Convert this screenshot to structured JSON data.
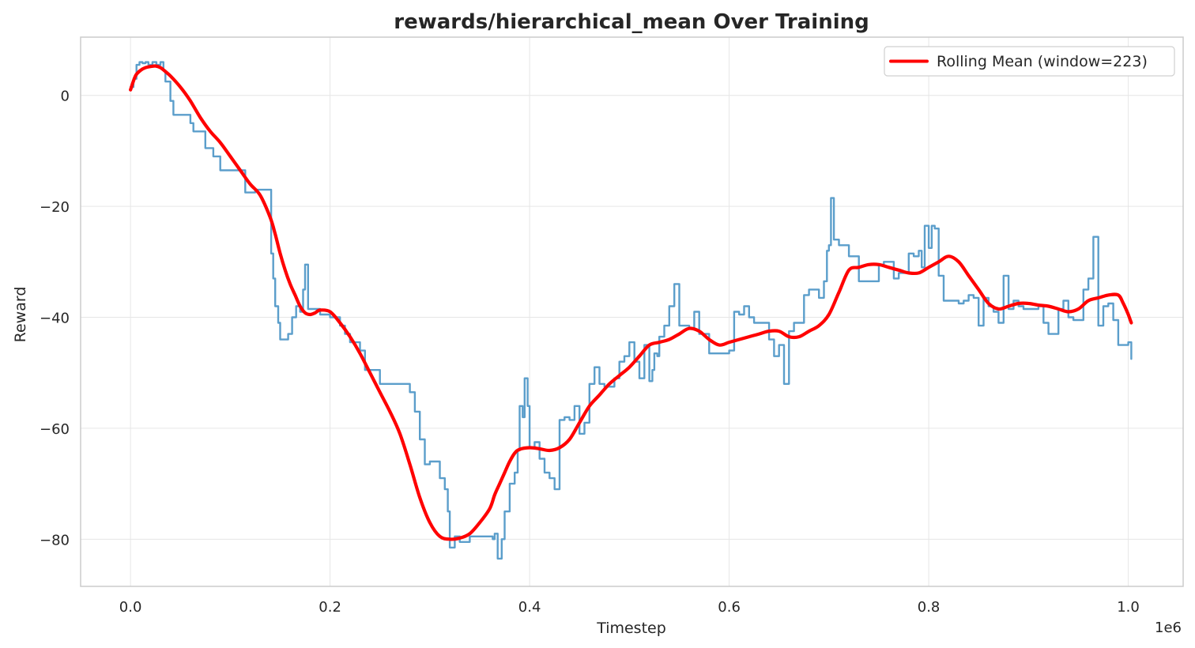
{
  "chart_data": {
    "type": "line",
    "title": "rewards/hierarchical_mean Over Training",
    "xlabel": "Timestep",
    "ylabel": "Reward",
    "x_multiplier_label": "1e6",
    "xlim": [
      -0.05,
      1.055
    ],
    "ylim": [
      -88.5,
      10.5
    ],
    "x_ticks": [
      0.0,
      0.2,
      0.4,
      0.6,
      0.8,
      1.0
    ],
    "x_tick_labels": [
      "0.0",
      "0.2",
      "0.4",
      "0.6",
      "0.8",
      "1.0"
    ],
    "y_ticks": [
      0,
      -20,
      -40,
      -60,
      -80
    ],
    "y_tick_labels": [
      "0",
      "−20",
      "−40",
      "−60",
      "−80"
    ],
    "grid": true,
    "legend_position": "top-right",
    "colors": {
      "raw": "#5b9ecb",
      "rolling": "#ff0000",
      "grid": "#e6e6e6",
      "spine": "#cccccc"
    },
    "series": [
      {
        "key": "raw",
        "style": "step",
        "x": [
          0.0,
          0.003,
          0.006,
          0.009,
          0.012,
          0.015,
          0.018,
          0.022,
          0.026,
          0.03,
          0.033,
          0.035,
          0.04,
          0.043,
          0.048,
          0.052,
          0.055,
          0.06,
          0.063,
          0.065,
          0.07,
          0.075,
          0.08,
          0.083,
          0.085,
          0.09,
          0.095,
          0.1,
          0.11,
          0.115,
          0.12,
          0.125,
          0.13,
          0.138,
          0.141,
          0.143,
          0.145,
          0.148,
          0.15,
          0.153,
          0.158,
          0.162,
          0.166,
          0.17,
          0.173,
          0.175,
          0.178,
          0.18,
          0.185,
          0.19,
          0.2,
          0.21,
          0.215,
          0.22,
          0.225,
          0.23,
          0.235,
          0.24,
          0.25,
          0.26,
          0.27,
          0.28,
          0.285,
          0.29,
          0.295,
          0.3,
          0.305,
          0.31,
          0.315,
          0.318,
          0.32,
          0.325,
          0.33,
          0.34,
          0.35,
          0.355,
          0.36,
          0.363,
          0.365,
          0.368,
          0.372,
          0.375,
          0.38,
          0.385,
          0.388,
          0.39,
          0.393,
          0.395,
          0.398,
          0.4,
          0.405,
          0.41,
          0.415,
          0.42,
          0.425,
          0.43,
          0.435,
          0.44,
          0.445,
          0.45,
          0.455,
          0.46,
          0.465,
          0.47,
          0.475,
          0.48,
          0.485,
          0.49,
          0.495,
          0.5,
          0.505,
          0.51,
          0.515,
          0.52,
          0.523,
          0.525,
          0.528,
          0.53,
          0.535,
          0.54,
          0.545,
          0.55,
          0.555,
          0.56,
          0.565,
          0.57,
          0.58,
          0.59,
          0.6,
          0.605,
          0.61,
          0.615,
          0.62,
          0.625,
          0.63,
          0.635,
          0.64,
          0.645,
          0.65,
          0.655,
          0.66,
          0.665,
          0.67,
          0.675,
          0.68,
          0.685,
          0.69,
          0.695,
          0.698,
          0.7,
          0.702,
          0.705,
          0.71,
          0.715,
          0.72,
          0.73,
          0.74,
          0.75,
          0.755,
          0.76,
          0.765,
          0.77,
          0.775,
          0.78,
          0.785,
          0.79,
          0.793,
          0.796,
          0.8,
          0.803,
          0.806,
          0.81,
          0.815,
          0.82,
          0.825,
          0.83,
          0.835,
          0.84,
          0.845,
          0.85,
          0.855,
          0.86,
          0.865,
          0.87,
          0.875,
          0.88,
          0.885,
          0.89,
          0.895,
          0.9,
          0.905,
          0.91,
          0.915,
          0.92,
          0.925,
          0.93,
          0.935,
          0.94,
          0.945,
          0.95,
          0.955,
          0.96,
          0.965,
          0.97,
          0.975,
          0.98,
          0.985,
          0.99,
          0.995,
          1.0,
          1.003
        ],
        "y": [
          1.5,
          3.0,
          5.5,
          6.0,
          5.8,
          6.0,
          5.5,
          6.0,
          5.5,
          6.0,
          4.5,
          2.5,
          -1.0,
          -3.5,
          -3.5,
          -3.5,
          -3.5,
          -5.0,
          -6.5,
          -6.5,
          -6.5,
          -9.5,
          -9.5,
          -11.0,
          -11.0,
          -13.5,
          -13.5,
          -13.5,
          -13.5,
          -17.5,
          -17.5,
          -17.0,
          -17.0,
          -17.0,
          -28.5,
          -33.0,
          -38.0,
          -41.0,
          -44.0,
          -44.0,
          -43.0,
          -40.0,
          -38.0,
          -39.0,
          -35.0,
          -30.5,
          -38.5,
          -38.5,
          -38.5,
          -39.5,
          -40.0,
          -41.5,
          -43.0,
          -44.5,
          -44.5,
          -46.0,
          -49.5,
          -49.5,
          -52.0,
          -52.0,
          -52.0,
          -53.5,
          -57.0,
          -62.0,
          -66.5,
          -66.0,
          -66.0,
          -69.0,
          -71.0,
          -75.0,
          -81.5,
          -79.5,
          -80.5,
          -79.5,
          -79.5,
          -79.5,
          -79.5,
          -80.0,
          -79.0,
          -83.5,
          -80.0,
          -75.0,
          -70.0,
          -68.0,
          -64.0,
          -56.0,
          -58.0,
          -51.0,
          -56.0,
          -63.5,
          -62.5,
          -65.5,
          -68.0,
          -69.0,
          -71.0,
          -58.5,
          -58.0,
          -58.5,
          -56.0,
          -61.0,
          -59.0,
          -52.0,
          -49.0,
          -52.0,
          -52.5,
          -52.5,
          -51.0,
          -48.0,
          -47.0,
          -44.5,
          -48.0,
          -51.0,
          -45.0,
          -51.5,
          -49.5,
          -46.5,
          -47.0,
          -43.5,
          -41.5,
          -38.0,
          -34.0,
          -41.5,
          -41.5,
          -42.0,
          -39.0,
          -43.0,
          -46.5,
          -46.5,
          -46.0,
          -39.0,
          -39.5,
          -38.0,
          -40.0,
          -41.0,
          -41.0,
          -41.0,
          -44.0,
          -47.0,
          -45.0,
          -52.0,
          -42.5,
          -41.0,
          -41.0,
          -36.0,
          -35.0,
          -35.0,
          -36.5,
          -33.5,
          -28.0,
          -27.0,
          -18.5,
          -26.0,
          -27.0,
          -27.0,
          -29.0,
          -33.5,
          -33.5,
          -30.5,
          -30.0,
          -30.0,
          -33.0,
          -32.0,
          -32.0,
          -28.5,
          -29.0,
          -28.0,
          -31.0,
          -23.5,
          -27.5,
          -23.5,
          -24.0,
          -32.5,
          -37.0,
          -37.0,
          -37.0,
          -37.5,
          -37.0,
          -36.0,
          -36.5,
          -41.5,
          -36.5,
          -38.0,
          -39.0,
          -41.0,
          -32.5,
          -38.5,
          -37.0,
          -38.0,
          -38.5,
          -38.5,
          -38.5,
          -38.0,
          -41.0,
          -43.0,
          -43.0,
          -38.5,
          -37.0,
          -40.0,
          -40.5,
          -40.5,
          -35.0,
          -33.0,
          -25.5,
          -41.5,
          -38.0,
          -37.5,
          -40.5,
          -45.0,
          -45.0,
          -44.5,
          -47.5
        ]
      },
      {
        "key": "rolling",
        "name": "Rolling Mean (window=223)",
        "style": "smooth",
        "x": [
          0.0,
          0.005,
          0.01,
          0.015,
          0.02,
          0.025,
          0.03,
          0.035,
          0.04,
          0.05,
          0.06,
          0.07,
          0.08,
          0.09,
          0.1,
          0.11,
          0.12,
          0.13,
          0.14,
          0.145,
          0.15,
          0.155,
          0.16,
          0.165,
          0.17,
          0.175,
          0.18,
          0.185,
          0.19,
          0.2,
          0.21,
          0.22,
          0.23,
          0.24,
          0.25,
          0.26,
          0.27,
          0.28,
          0.29,
          0.3,
          0.31,
          0.32,
          0.33,
          0.34,
          0.35,
          0.36,
          0.365,
          0.37,
          0.375,
          0.38,
          0.385,
          0.39,
          0.4,
          0.41,
          0.42,
          0.43,
          0.44,
          0.45,
          0.46,
          0.47,
          0.48,
          0.49,
          0.5,
          0.51,
          0.52,
          0.53,
          0.54,
          0.55,
          0.56,
          0.57,
          0.58,
          0.59,
          0.6,
          0.61,
          0.62,
          0.63,
          0.64,
          0.65,
          0.66,
          0.67,
          0.68,
          0.69,
          0.7,
          0.71,
          0.72,
          0.73,
          0.74,
          0.75,
          0.76,
          0.77,
          0.78,
          0.79,
          0.8,
          0.81,
          0.82,
          0.83,
          0.84,
          0.85,
          0.86,
          0.87,
          0.88,
          0.89,
          0.9,
          0.91,
          0.92,
          0.93,
          0.94,
          0.95,
          0.96,
          0.97,
          0.98,
          0.99,
          0.995,
          1.0,
          1.003
        ],
        "y": [
          1.0,
          3.5,
          4.5,
          5.0,
          5.2,
          5.3,
          5.0,
          4.3,
          3.5,
          1.5,
          -1.0,
          -4.0,
          -6.5,
          -8.5,
          -11.0,
          -13.5,
          -16.0,
          -18.0,
          -22.0,
          -25.0,
          -28.5,
          -31.5,
          -34.0,
          -36.0,
          -38.0,
          -39.2,
          -39.5,
          -39.2,
          -38.7,
          -39.0,
          -41.0,
          -43.5,
          -46.5,
          -50.0,
          -53.5,
          -57.0,
          -61.0,
          -66.5,
          -72.5,
          -77.0,
          -79.5,
          -80.0,
          -79.8,
          -79.0,
          -77.0,
          -74.5,
          -72.0,
          -70.0,
          -68.0,
          -66.0,
          -64.5,
          -63.8,
          -63.5,
          -63.7,
          -64.0,
          -63.5,
          -62.0,
          -59.0,
          -56.0,
          -54.0,
          -52.0,
          -50.5,
          -49.0,
          -47.0,
          -45.0,
          -44.5,
          -44.0,
          -43.0,
          -42.0,
          -42.5,
          -44.0,
          -45.0,
          -44.5,
          -44.0,
          -43.5,
          -43.0,
          -42.5,
          -42.5,
          -43.5,
          -43.5,
          -42.5,
          -41.5,
          -39.5,
          -35.5,
          -31.5,
          -31.0,
          -30.5,
          -30.5,
          -31.0,
          -31.5,
          -32.0,
          -32.0,
          -31.0,
          -30.0,
          -29.0,
          -30.0,
          -32.5,
          -35.0,
          -37.5,
          -38.5,
          -38.0,
          -37.5,
          -37.5,
          -37.8,
          -38.0,
          -38.5,
          -39.0,
          -38.5,
          -37.0,
          -36.5,
          -36.0,
          -36.0,
          -37.5,
          -39.5,
          -41.0
        ]
      }
    ]
  }
}
